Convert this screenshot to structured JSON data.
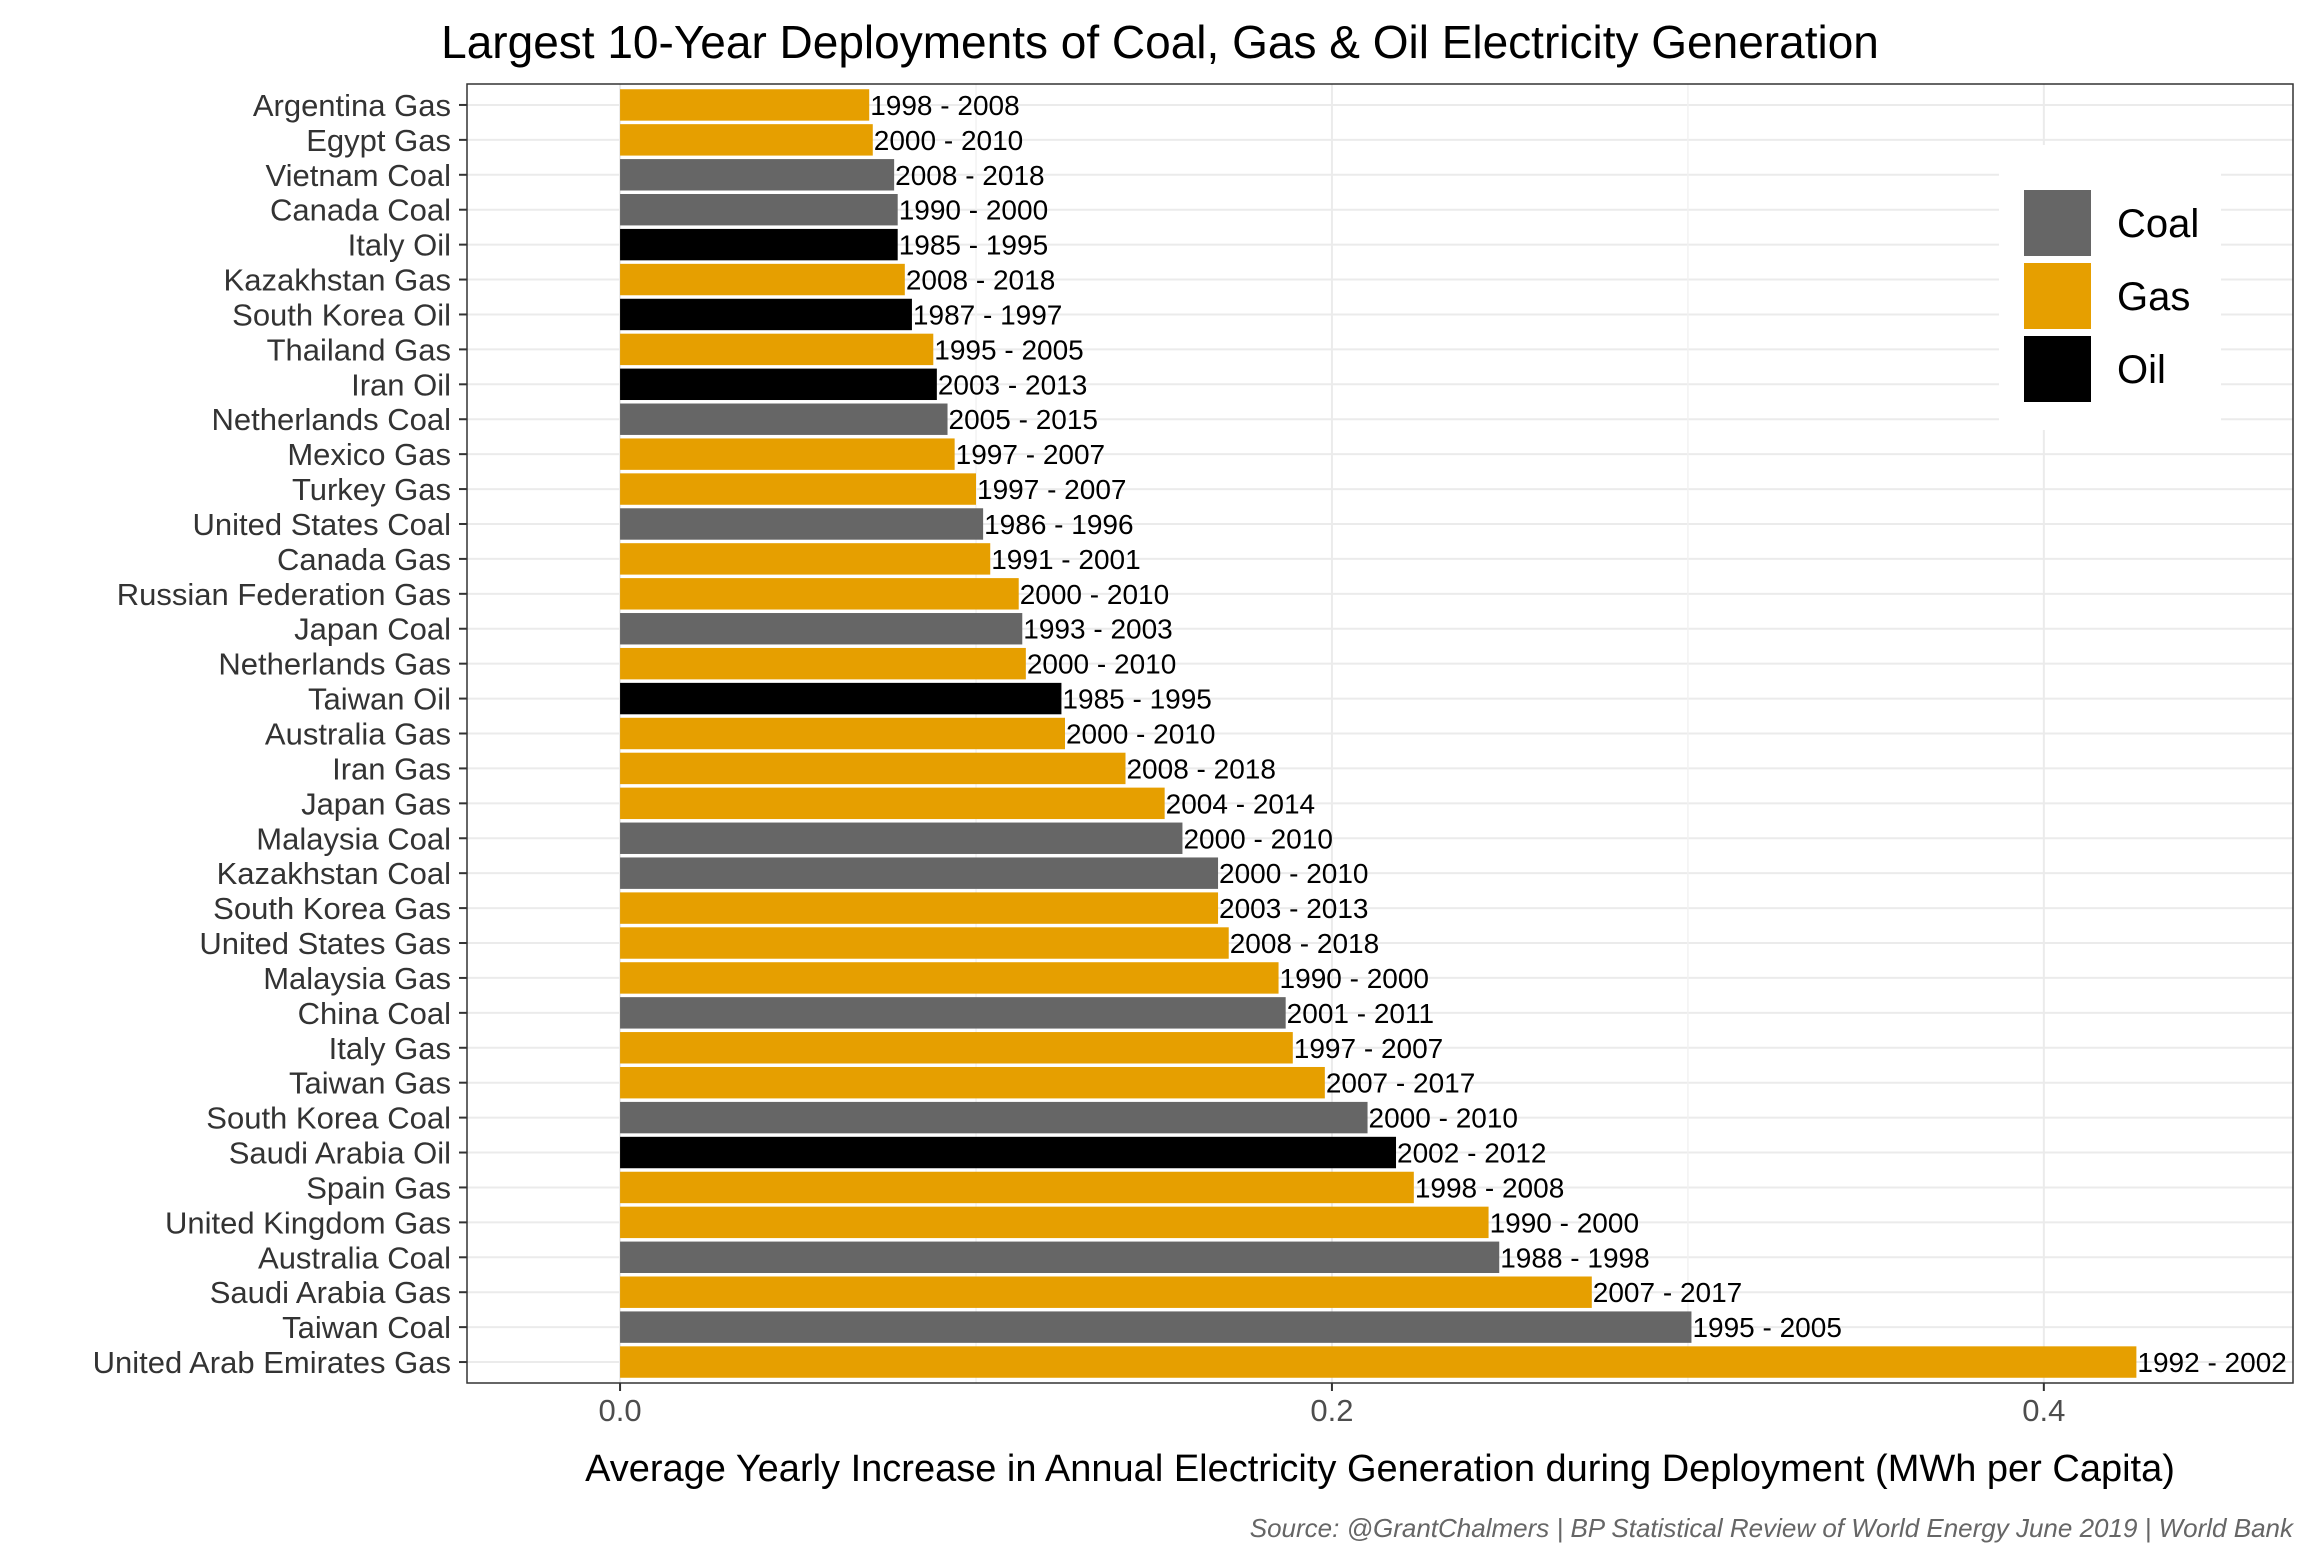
{
  "chart_data": {
    "type": "bar",
    "orientation": "horizontal",
    "title": "Largest 10-Year Deployments of Coal, Gas & Oil Electricity Generation",
    "xlabel": "Average Yearly Increase in Annual Electricity Generation during Deployment (MWh per Capita)",
    "ylabel": "",
    "caption": "Source: @GrantChalmers | BP Statistical Review of World Energy June 2019 | World Bank",
    "xlim": [
      -0.043,
      0.47
    ],
    "xticks": [
      0.0,
      0.2,
      0.4
    ],
    "xtick_labels": [
      "0.0",
      "0.2",
      "0.4"
    ],
    "grid": true,
    "legend": {
      "position": "top-right",
      "entries": [
        {
          "name": "Coal",
          "color": "#666666"
        },
        {
          "name": "Gas",
          "color": "#E69F00"
        },
        {
          "name": "Oil",
          "color": "#000000"
        }
      ]
    },
    "bars": [
      {
        "category": "Argentina Gas",
        "fuel": "Gas",
        "value": 0.07,
        "period": "1998 - 2008"
      },
      {
        "category": "Egypt Gas",
        "fuel": "Gas",
        "value": 0.071,
        "period": "2000 - 2010"
      },
      {
        "category": "Vietnam Coal",
        "fuel": "Coal",
        "value": 0.077,
        "period": "2008 - 2018"
      },
      {
        "category": "Canada Coal",
        "fuel": "Coal",
        "value": 0.078,
        "period": "1990 - 2000"
      },
      {
        "category": "Italy Oil",
        "fuel": "Oil",
        "value": 0.078,
        "period": "1985 - 1995"
      },
      {
        "category": "Kazakhstan Gas",
        "fuel": "Gas",
        "value": 0.08,
        "period": "2008 - 2018"
      },
      {
        "category": "South Korea Oil",
        "fuel": "Oil",
        "value": 0.082,
        "period": "1987 - 1997"
      },
      {
        "category": "Thailand Gas",
        "fuel": "Gas",
        "value": 0.088,
        "period": "1995 - 2005"
      },
      {
        "category": "Iran Oil",
        "fuel": "Oil",
        "value": 0.089,
        "period": "2003 - 2013"
      },
      {
        "category": "Netherlands Coal",
        "fuel": "Coal",
        "value": 0.092,
        "period": "2005 - 2015"
      },
      {
        "category": "Mexico Gas",
        "fuel": "Gas",
        "value": 0.094,
        "period": "1997 - 2007"
      },
      {
        "category": "Turkey Gas",
        "fuel": "Gas",
        "value": 0.1,
        "period": "1997 - 2007"
      },
      {
        "category": "United States Coal",
        "fuel": "Coal",
        "value": 0.102,
        "period": "1986 - 1996"
      },
      {
        "category": "Canada Gas",
        "fuel": "Gas",
        "value": 0.104,
        "period": "1991 - 2001"
      },
      {
        "category": "Russian Federation Gas",
        "fuel": "Gas",
        "value": 0.112,
        "period": "2000 - 2010"
      },
      {
        "category": "Japan Coal",
        "fuel": "Coal",
        "value": 0.113,
        "period": "1993 - 2003"
      },
      {
        "category": "Netherlands Gas",
        "fuel": "Gas",
        "value": 0.114,
        "period": "2000 - 2010"
      },
      {
        "category": "Taiwan Oil",
        "fuel": "Oil",
        "value": 0.124,
        "period": "1985 - 1995"
      },
      {
        "category": "Australia Gas",
        "fuel": "Gas",
        "value": 0.125,
        "period": "2000 - 2010"
      },
      {
        "category": "Iran Gas",
        "fuel": "Gas",
        "value": 0.142,
        "period": "2008 - 2018"
      },
      {
        "category": "Japan Gas",
        "fuel": "Gas",
        "value": 0.153,
        "period": "2004 - 2014"
      },
      {
        "category": "Malaysia Coal",
        "fuel": "Coal",
        "value": 0.158,
        "period": "2000 - 2010"
      },
      {
        "category": "Kazakhstan Coal",
        "fuel": "Coal",
        "value": 0.168,
        "period": "2000 - 2010"
      },
      {
        "category": "South Korea Gas",
        "fuel": "Gas",
        "value": 0.168,
        "period": "2003 - 2013"
      },
      {
        "category": "United States Gas",
        "fuel": "Gas",
        "value": 0.171,
        "period": "2008 - 2018"
      },
      {
        "category": "Malaysia Gas",
        "fuel": "Gas",
        "value": 0.185,
        "period": "1990 - 2000"
      },
      {
        "category": "China Coal",
        "fuel": "Coal",
        "value": 0.187,
        "period": "2001 - 2011"
      },
      {
        "category": "Italy Gas",
        "fuel": "Gas",
        "value": 0.189,
        "period": "1997 - 2007"
      },
      {
        "category": "Taiwan Gas",
        "fuel": "Gas",
        "value": 0.198,
        "period": "2007 - 2017"
      },
      {
        "category": "South Korea Coal",
        "fuel": "Coal",
        "value": 0.21,
        "period": "2000 - 2010"
      },
      {
        "category": "Saudi Arabia Oil",
        "fuel": "Oil",
        "value": 0.218,
        "period": "2002 - 2012"
      },
      {
        "category": "Spain Gas",
        "fuel": "Gas",
        "value": 0.223,
        "period": "1998 - 2008"
      },
      {
        "category": "United Kingdom Gas",
        "fuel": "Gas",
        "value": 0.244,
        "period": "1990 - 2000"
      },
      {
        "category": "Australia Coal",
        "fuel": "Coal",
        "value": 0.247,
        "period": "1988 - 1998"
      },
      {
        "category": "Saudi Arabia Gas",
        "fuel": "Gas",
        "value": 0.273,
        "period": "2007 - 2017"
      },
      {
        "category": "Taiwan Coal",
        "fuel": "Coal",
        "value": 0.301,
        "period": "1995 - 2005"
      },
      {
        "category": "United Arab Emirates Gas",
        "fuel": "Gas",
        "value": 0.426,
        "period": "1992 - 2002"
      }
    ]
  }
}
